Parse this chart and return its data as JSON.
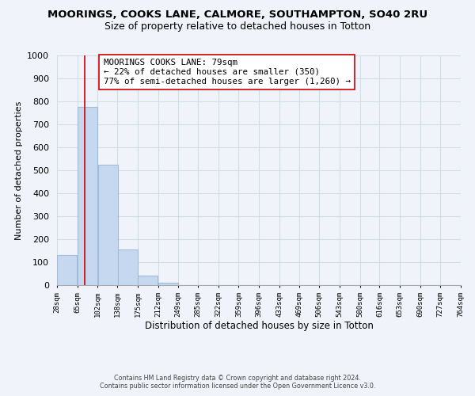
{
  "title": "MOORINGS, COOKS LANE, CALMORE, SOUTHAMPTON, SO40 2RU",
  "subtitle": "Size of property relative to detached houses in Totton",
  "xlabel": "Distribution of detached houses by size in Totton",
  "ylabel": "Number of detached properties",
  "footer_line1": "Contains HM Land Registry data © Crown copyright and database right 2024.",
  "footer_line2": "Contains public sector information licensed under the Open Government Licence v3.0.",
  "bin_edges": [
    28,
    65,
    102,
    138,
    175,
    212,
    249,
    285,
    322,
    359,
    396,
    433,
    469,
    506,
    543,
    580,
    616,
    653,
    690,
    727,
    764
  ],
  "bar_heights": [
    130,
    775,
    525,
    155,
    40,
    10,
    0,
    0,
    0,
    0,
    0,
    0,
    0,
    0,
    0,
    0,
    0,
    0,
    0,
    0
  ],
  "bar_color": "#c5d8f0",
  "bar_edgecolor": "#a0bcd8",
  "property_size": 79,
  "vline_color": "#cc0000",
  "vline_x": 79,
  "annotation_line1": "MOORINGS COOKS LANE: 79sqm",
  "annotation_line2": "← 22% of detached houses are smaller (350)",
  "annotation_line3": "77% of semi-detached houses are larger (1,260) →",
  "annotation_box_edgecolor": "#cc0000",
  "annotation_box_facecolor": "#ffffff",
  "ylim": [
    0,
    1000
  ],
  "yticks": [
    0,
    100,
    200,
    300,
    400,
    500,
    600,
    700,
    800,
    900,
    1000
  ],
  "background_color": "#f0f4fa",
  "grid_color": "#d0dce8",
  "title_fontsize": 9.5,
  "subtitle_fontsize": 9
}
